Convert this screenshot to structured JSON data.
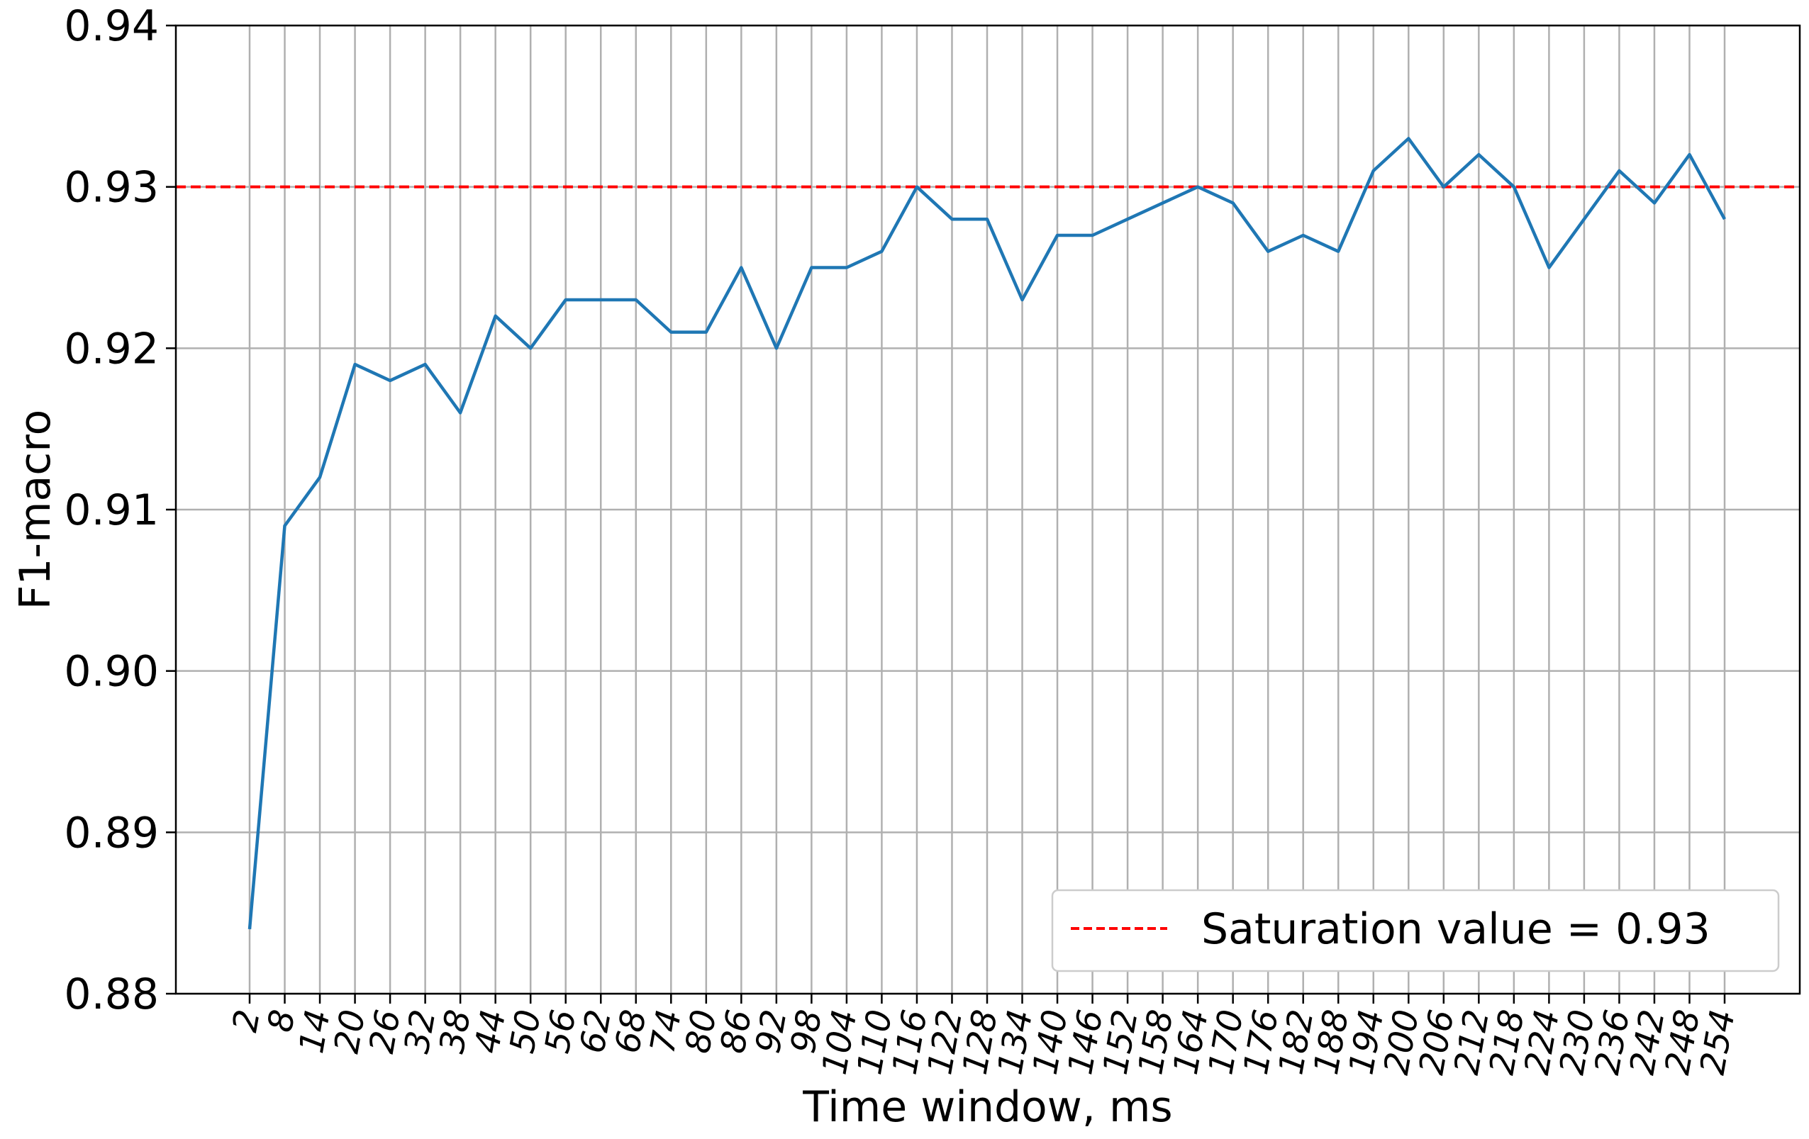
{
  "chart_data": {
    "type": "line",
    "xlabel": "Time window, ms",
    "ylabel": "F1-macro",
    "ylim": [
      0.88,
      0.94
    ],
    "yticks": [
      "0.88",
      "0.89",
      "0.90",
      "0.91",
      "0.92",
      "0.93",
      "0.94"
    ],
    "x": [
      2,
      8,
      14,
      20,
      26,
      32,
      38,
      44,
      50,
      56,
      62,
      68,
      74,
      80,
      86,
      92,
      98,
      104,
      110,
      116,
      122,
      128,
      134,
      140,
      146,
      152,
      158,
      164,
      170,
      176,
      182,
      188,
      194,
      200,
      206,
      212,
      218,
      224,
      230,
      236,
      242,
      248,
      254
    ],
    "series": [
      {
        "values": [
          0.884,
          0.909,
          0.912,
          0.919,
          0.918,
          0.919,
          0.916,
          0.922,
          0.92,
          0.923,
          0.923,
          0.923,
          0.921,
          0.921,
          0.925,
          0.92,
          0.925,
          0.925,
          0.926,
          0.93,
          0.928,
          0.928,
          0.923,
          0.927,
          0.927,
          0.928,
          0.929,
          0.93,
          0.929,
          0.926,
          0.927,
          0.926,
          0.931,
          0.933,
          0.93,
          0.932,
          0.93,
          0.925,
          0.928,
          0.931,
          0.929,
          0.932,
          0.928
        ],
        "color": "#1f77b4"
      }
    ],
    "reference_line": {
      "y": 0.93,
      "label": "Saturation value = 0.93",
      "color": "#ff0000",
      "style": "dashed"
    },
    "grid": true,
    "legend_position": "lower-right"
  }
}
